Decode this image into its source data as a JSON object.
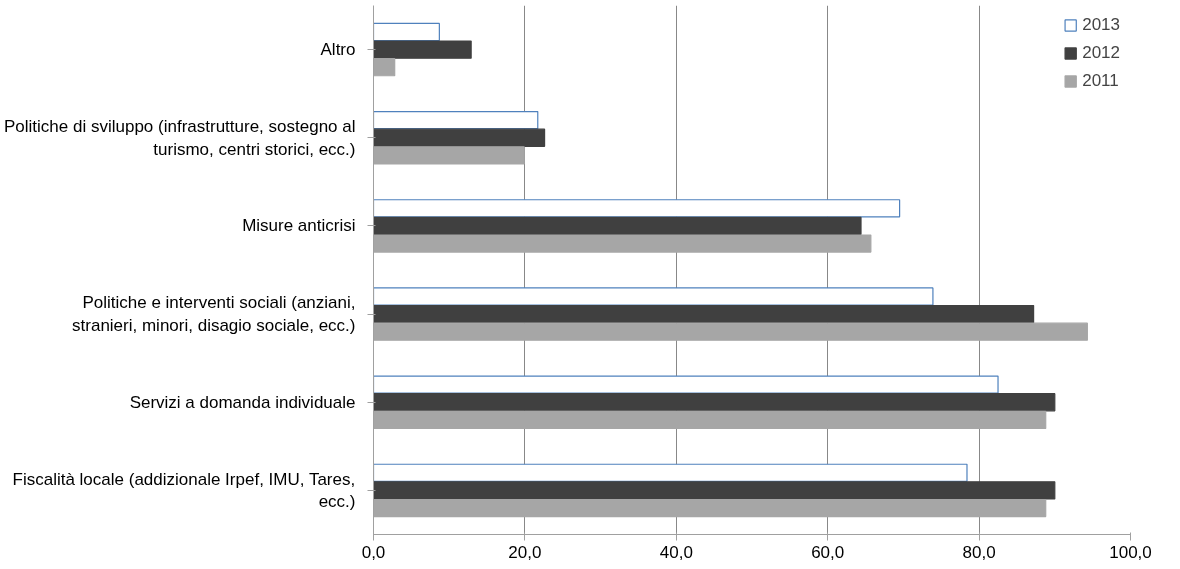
{
  "chart_data": {
    "type": "bar",
    "orientation": "horizontal",
    "categories": [
      "Altro",
      "Politiche di sviluppo (infrastrutture, sostegno al turismo, centri storici, ecc.)",
      "Misure anticrisi",
      "Politiche e interventi sociali (anziani, stranieri, minori, disagio sociale, ecc.)",
      "Servizi a domanda individuale",
      "Fiscalità locale (addizionale Irpef, IMU, Tares, ecc.)"
    ],
    "series": [
      {
        "name": "2013",
        "color": "#ffffff",
        "values": [
          8.7,
          21.7,
          69.5,
          73.9,
          82.5,
          78.4
        ]
      },
      {
        "name": "2012",
        "color": "#404040",
        "values": [
          12.9,
          22.6,
          64.4,
          87.2,
          90.0,
          90.0
        ]
      },
      {
        "name": "2011",
        "color": "#a6a6a6",
        "values": [
          2.8,
          19.9,
          65.7,
          94.3,
          88.8,
          88.8
        ]
      }
    ],
    "xlim": [
      0,
      100
    ],
    "xticks": [
      {
        "value": 0,
        "label": "0,0"
      },
      {
        "value": 20,
        "label": "20,0"
      },
      {
        "value": 40,
        "label": "40,0"
      },
      {
        "value": 60,
        "label": "60,0"
      },
      {
        "value": 80,
        "label": "80,0"
      },
      {
        "value": 100,
        "label": "100,0"
      }
    ],
    "grid": "x",
    "legend": "top right"
  }
}
